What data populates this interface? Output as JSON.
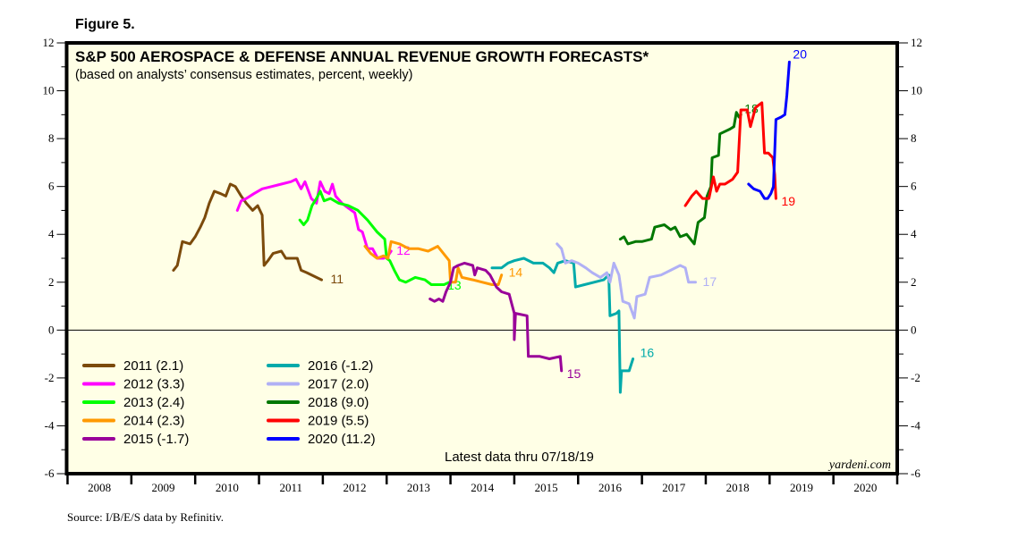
{
  "figure_label": "Figure 5.",
  "source": "Source: I/B/E/S data by Refinitiv.",
  "chart_data": {
    "type": "line",
    "title": "S&P 500 AEROSPACE & DEFENSE ANNUAL REVENUE GROWTH FORECASTS*",
    "subtitle": "(based on analysts’ consensus estimates, percent, weekly)",
    "xlabel": "",
    "ylabel": "",
    "xlim": [
      2008,
      2021
    ],
    "ylim": [
      -6,
      12
    ],
    "x_ticks": [
      "2008",
      "2009",
      "2010",
      "2011",
      "2012",
      "2013",
      "2014",
      "2015",
      "2016",
      "2017",
      "2018",
      "2019",
      "2020"
    ],
    "y_ticks": [
      -6,
      -4,
      -2,
      0,
      2,
      4,
      6,
      8,
      10,
      12
    ],
    "y_tick_labels": [
      "-6",
      "-4",
      "-2",
      "0",
      "2",
      "4",
      "6",
      "8",
      "10",
      "12"
    ],
    "zero_line": true,
    "grid": false,
    "legend_position": "bottom-left",
    "annotation": "Latest data thru 07/18/19",
    "brand": "yardeni.com",
    "series": [
      {
        "name": "2011",
        "legend": "2011 (2.1)",
        "end_label": "11",
        "color": "#7b4a0b",
        "points": [
          [
            2009.66,
            2.5
          ],
          [
            2009.72,
            2.7
          ],
          [
            2009.8,
            3.7
          ],
          [
            2009.92,
            3.6
          ],
          [
            2010.0,
            3.9
          ],
          [
            2010.08,
            4.3
          ],
          [
            2010.15,
            4.7
          ],
          [
            2010.22,
            5.3
          ],
          [
            2010.3,
            5.8
          ],
          [
            2010.4,
            5.7
          ],
          [
            2010.48,
            5.6
          ],
          [
            2010.55,
            6.1
          ],
          [
            2010.63,
            6.0
          ],
          [
            2010.72,
            5.6
          ],
          [
            2010.8,
            5.3
          ],
          [
            2010.9,
            5.0
          ],
          [
            2010.98,
            5.2
          ],
          [
            2011.05,
            4.8
          ],
          [
            2011.08,
            2.7
          ],
          [
            2011.14,
            2.9
          ],
          [
            2011.22,
            3.2
          ],
          [
            2011.35,
            3.3
          ],
          [
            2011.42,
            3.0
          ],
          [
            2011.6,
            3.0
          ],
          [
            2011.66,
            2.5
          ],
          [
            2011.75,
            2.4
          ],
          [
            2011.9,
            2.2
          ],
          [
            2011.98,
            2.1
          ]
        ]
      },
      {
        "name": "2012",
        "legend": "2012 (3.3)",
        "end_label": "12",
        "color": "#ff00ff",
        "points": [
          [
            2010.66,
            5.0
          ],
          [
            2010.72,
            5.4
          ],
          [
            2010.8,
            5.5
          ],
          [
            2010.92,
            5.7
          ],
          [
            2011.05,
            5.9
          ],
          [
            2011.2,
            6.0
          ],
          [
            2011.35,
            6.1
          ],
          [
            2011.5,
            6.2
          ],
          [
            2011.58,
            6.3
          ],
          [
            2011.66,
            5.9
          ],
          [
            2011.72,
            6.2
          ],
          [
            2011.82,
            5.5
          ],
          [
            2011.9,
            5.3
          ],
          [
            2011.96,
            6.2
          ],
          [
            2012.03,
            5.8
          ],
          [
            2012.1,
            5.7
          ],
          [
            2012.15,
            6.1
          ],
          [
            2012.2,
            5.6
          ],
          [
            2012.3,
            5.3
          ],
          [
            2012.4,
            5.1
          ],
          [
            2012.5,
            4.9
          ],
          [
            2012.56,
            4.2
          ],
          [
            2012.62,
            4.1
          ],
          [
            2012.7,
            3.4
          ],
          [
            2012.78,
            3.4
          ],
          [
            2012.86,
            3.0
          ],
          [
            2012.95,
            3.0
          ],
          [
            2013.02,
            3.1
          ],
          [
            2013.07,
            3.3
          ]
        ]
      },
      {
        "name": "2013",
        "legend": "2013 (2.4)",
        "end_label": "13",
        "color": "#00ff00",
        "points": [
          [
            2011.64,
            4.6
          ],
          [
            2011.7,
            4.4
          ],
          [
            2011.76,
            4.6
          ],
          [
            2011.83,
            5.2
          ],
          [
            2011.9,
            5.5
          ],
          [
            2011.96,
            5.8
          ],
          [
            2012.02,
            5.4
          ],
          [
            2012.12,
            5.5
          ],
          [
            2012.25,
            5.3
          ],
          [
            2012.4,
            5.2
          ],
          [
            2012.55,
            5.0
          ],
          [
            2012.7,
            4.6
          ],
          [
            2012.85,
            4.1
          ],
          [
            2012.97,
            3.8
          ],
          [
            2013.0,
            3.0
          ],
          [
            2013.05,
            2.9
          ],
          [
            2013.12,
            2.5
          ],
          [
            2013.2,
            2.1
          ],
          [
            2013.3,
            2.0
          ],
          [
            2013.45,
            2.2
          ],
          [
            2013.6,
            2.1
          ],
          [
            2013.7,
            1.9
          ],
          [
            2013.9,
            1.9
          ],
          [
            2013.98,
            2.0
          ]
        ]
      },
      {
        "name": "2014",
        "legend": "2014 (2.3)",
        "end_label": "14",
        "color": "#ff9900",
        "points": [
          [
            2012.66,
            3.5
          ],
          [
            2012.75,
            3.2
          ],
          [
            2012.85,
            3.0
          ],
          [
            2012.95,
            3.1
          ],
          [
            2013.02,
            3.0
          ],
          [
            2013.07,
            3.7
          ],
          [
            2013.2,
            3.6
          ],
          [
            2013.35,
            3.4
          ],
          [
            2013.5,
            3.4
          ],
          [
            2013.65,
            3.3
          ],
          [
            2013.8,
            3.5
          ],
          [
            2013.92,
            3.1
          ],
          [
            2013.98,
            2.9
          ],
          [
            2014.0,
            2.0
          ],
          [
            2014.08,
            2.0
          ],
          [
            2014.12,
            2.6
          ],
          [
            2014.18,
            2.2
          ],
          [
            2014.35,
            2.1
          ],
          [
            2014.5,
            2.0
          ],
          [
            2014.65,
            1.9
          ],
          [
            2014.75,
            1.9
          ],
          [
            2014.8,
            2.3
          ]
        ]
      },
      {
        "name": "2015",
        "legend": "2015 (-1.7)",
        "end_label": "15",
        "color": "#990099",
        "points": [
          [
            2013.68,
            1.3
          ],
          [
            2013.75,
            1.2
          ],
          [
            2013.82,
            1.3
          ],
          [
            2013.88,
            1.2
          ],
          [
            2013.93,
            1.6
          ],
          [
            2014.0,
            2.0
          ],
          [
            2014.05,
            2.6
          ],
          [
            2014.12,
            2.7
          ],
          [
            2014.22,
            2.8
          ],
          [
            2014.35,
            2.7
          ],
          [
            2014.38,
            2.3
          ],
          [
            2014.42,
            2.6
          ],
          [
            2014.55,
            2.5
          ],
          [
            2014.62,
            2.3
          ],
          [
            2014.72,
            1.8
          ],
          [
            2014.8,
            1.6
          ],
          [
            2014.92,
            1.5
          ],
          [
            2015.0,
            0.7
          ],
          [
            2015.0,
            -0.4
          ],
          [
            2015.02,
            0.7
          ],
          [
            2015.2,
            0.6
          ],
          [
            2015.22,
            -1.1
          ],
          [
            2015.4,
            -1.1
          ],
          [
            2015.55,
            -1.2
          ],
          [
            2015.72,
            -1.1
          ],
          [
            2015.74,
            -1.7
          ]
        ]
      },
      {
        "name": "2016",
        "legend": "2016 (-1.2)",
        "end_label": "16",
        "color": "#00aaaa",
        "points": [
          [
            2014.65,
            2.6
          ],
          [
            2014.8,
            2.6
          ],
          [
            2014.9,
            2.8
          ],
          [
            2015.0,
            2.9
          ],
          [
            2015.15,
            3.0
          ],
          [
            2015.3,
            2.8
          ],
          [
            2015.45,
            2.8
          ],
          [
            2015.55,
            2.6
          ],
          [
            2015.62,
            2.4
          ],
          [
            2015.68,
            2.8
          ],
          [
            2015.8,
            2.9
          ],
          [
            2015.93,
            2.8
          ],
          [
            2015.96,
            1.8
          ],
          [
            2016.1,
            1.9
          ],
          [
            2016.25,
            2.0
          ],
          [
            2016.4,
            2.1
          ],
          [
            2016.48,
            2.3
          ],
          [
            2016.5,
            0.6
          ],
          [
            2016.6,
            0.7
          ],
          [
            2016.64,
            0.8
          ],
          [
            2016.66,
            -2.6
          ],
          [
            2016.68,
            -1.7
          ],
          [
            2016.8,
            -1.7
          ],
          [
            2016.86,
            -1.2
          ]
        ]
      },
      {
        "name": "2017",
        "legend": "2017 (2.0)",
        "end_label": "17",
        "color": "#b0b0f5",
        "points": [
          [
            2015.67,
            3.6
          ],
          [
            2015.74,
            3.4
          ],
          [
            2015.8,
            2.8
          ],
          [
            2015.9,
            2.9
          ],
          [
            2016.0,
            2.8
          ],
          [
            2016.12,
            2.6
          ],
          [
            2016.22,
            2.4
          ],
          [
            2016.35,
            2.2
          ],
          [
            2016.45,
            2.4
          ],
          [
            2016.5,
            2.0
          ],
          [
            2016.56,
            2.8
          ],
          [
            2016.64,
            2.3
          ],
          [
            2016.7,
            1.2
          ],
          [
            2016.8,
            1.1
          ],
          [
            2016.88,
            0.5
          ],
          [
            2016.92,
            1.4
          ],
          [
            2017.05,
            1.5
          ],
          [
            2017.12,
            2.2
          ],
          [
            2017.3,
            2.3
          ],
          [
            2017.45,
            2.5
          ],
          [
            2017.6,
            2.7
          ],
          [
            2017.68,
            2.6
          ],
          [
            2017.73,
            2.0
          ],
          [
            2017.84,
            2.0
          ]
        ]
      },
      {
        "name": "2018",
        "legend": "2018 (9.0)",
        "end_label": "18",
        "color": "#007700",
        "points": [
          [
            2016.66,
            3.8
          ],
          [
            2016.72,
            3.9
          ],
          [
            2016.78,
            3.6
          ],
          [
            2016.9,
            3.7
          ],
          [
            2017.0,
            3.7
          ],
          [
            2017.15,
            3.8
          ],
          [
            2017.2,
            4.3
          ],
          [
            2017.35,
            4.4
          ],
          [
            2017.45,
            4.2
          ],
          [
            2017.52,
            4.3
          ],
          [
            2017.6,
            3.9
          ],
          [
            2017.7,
            4.0
          ],
          [
            2017.82,
            3.6
          ],
          [
            2017.88,
            4.5
          ],
          [
            2017.98,
            4.7
          ],
          [
            2018.02,
            5.6
          ],
          [
            2018.08,
            6.0
          ],
          [
            2018.1,
            7.2
          ],
          [
            2018.2,
            7.3
          ],
          [
            2018.22,
            8.2
          ],
          [
            2018.38,
            8.4
          ],
          [
            2018.44,
            8.5
          ],
          [
            2018.48,
            9.1
          ],
          [
            2018.52,
            8.9
          ],
          [
            2018.55,
            9.0
          ]
        ]
      },
      {
        "name": "2019",
        "legend": "2019 (5.5)",
        "end_label": "19",
        "color": "#ff0000",
        "points": [
          [
            2017.68,
            5.2
          ],
          [
            2017.78,
            5.6
          ],
          [
            2017.85,
            5.8
          ],
          [
            2017.95,
            5.5
          ],
          [
            2018.05,
            5.5
          ],
          [
            2018.12,
            6.4
          ],
          [
            2018.17,
            5.8
          ],
          [
            2018.22,
            6.1
          ],
          [
            2018.3,
            6.1
          ],
          [
            2018.42,
            6.3
          ],
          [
            2018.5,
            6.6
          ],
          [
            2018.55,
            9.2
          ],
          [
            2018.65,
            9.2
          ],
          [
            2018.7,
            8.5
          ],
          [
            2018.78,
            9.3
          ],
          [
            2018.88,
            9.5
          ],
          [
            2018.92,
            7.4
          ],
          [
            2018.98,
            7.4
          ],
          [
            2019.05,
            7.2
          ],
          [
            2019.08,
            6.5
          ],
          [
            2019.1,
            5.5
          ]
        ]
      },
      {
        "name": "2020",
        "legend": "2020 (11.2)",
        "end_label": "20",
        "color": "#0000ff",
        "points": [
          [
            2018.67,
            6.1
          ],
          [
            2018.75,
            5.9
          ],
          [
            2018.85,
            5.8
          ],
          [
            2018.92,
            5.5
          ],
          [
            2018.97,
            5.5
          ],
          [
            2019.02,
            5.7
          ],
          [
            2019.06,
            6.0
          ],
          [
            2019.1,
            8.8
          ],
          [
            2019.18,
            8.9
          ],
          [
            2019.24,
            9.0
          ],
          [
            2019.27,
            9.8
          ],
          [
            2019.31,
            11.2
          ]
        ]
      }
    ]
  }
}
